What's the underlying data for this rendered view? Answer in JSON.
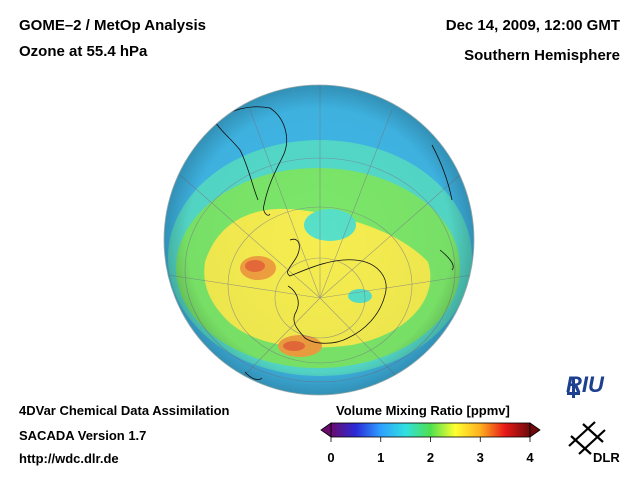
{
  "header": {
    "title_line1": "GOME–2 / MetOp Analysis",
    "title_line2": "Ozone at 55.4 hPa",
    "date": "Dec 14, 2009, 12:00 GMT",
    "region": "Southern Hemisphere"
  },
  "footer": {
    "line1": "4DVar Chemical Data Assimilation",
    "line2": "SACADA Version 1.7",
    "line3": "http://wdc.dlr.de"
  },
  "colorbar": {
    "title": "Volume Mixing Ratio [ppmv]",
    "ticks": [
      "0",
      "1",
      "2",
      "3",
      "4"
    ],
    "range": [
      0,
      4
    ],
    "colors": [
      "#6a0a6e",
      "#2a2bd8",
      "#2ea0ff",
      "#30e0e0",
      "#4ee04e",
      "#ffff30",
      "#ffb020",
      "#e81818",
      "#6e0a0a"
    ]
  },
  "map": {
    "projection": "orthographic-south-polar",
    "field_colors": {
      "background": "#40b8e8",
      "cyan": "#58e0c8",
      "green": "#7ce86a",
      "yellow": "#f6ee50",
      "orange": "#f0a040",
      "red": "#e86a3a"
    }
  },
  "logos": {
    "riu": "RIU",
    "dlr": "DLR"
  }
}
